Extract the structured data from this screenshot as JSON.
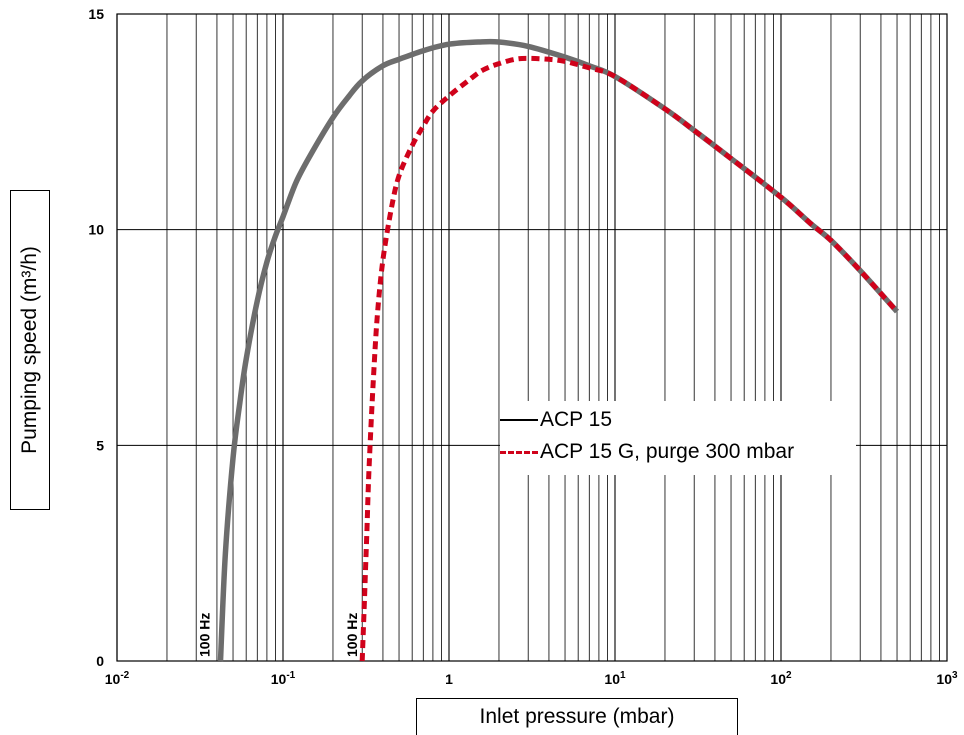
{
  "chart_data": {
    "type": "line",
    "xscale": "log",
    "xlim": [
      0.01,
      1000
    ],
    "ylim": [
      0,
      15
    ],
    "xlabel": "Inlet pressure (mbar)",
    "ylabel": "Pumping speed (m³/h)",
    "y_ticks": [
      {
        "value": 0,
        "label": "0"
      },
      {
        "value": 5,
        "label": "5"
      },
      {
        "value": 10,
        "label": "10"
      },
      {
        "value": 15,
        "label": "15"
      }
    ],
    "x_ticks": [
      {
        "value": 0.01,
        "base": "10",
        "exp": "-2"
      },
      {
        "value": 0.1,
        "base": "10",
        "exp": "-1"
      },
      {
        "value": 1,
        "base": "1",
        "exp": ""
      },
      {
        "value": 10,
        "base": "10",
        "exp": "1"
      },
      {
        "value": 100,
        "base": "10",
        "exp": "2"
      },
      {
        "value": 1000,
        "base": "10",
        "exp": "3"
      }
    ],
    "grid": true,
    "series": [
      {
        "name": "ACP 15",
        "color": "#6d6d6d",
        "style": "solid",
        "x": [
          0.042,
          0.045,
          0.05,
          0.055,
          0.06,
          0.07,
          0.08,
          0.09,
          0.1,
          0.12,
          0.15,
          0.2,
          0.25,
          0.3,
          0.4,
          0.5,
          0.7,
          1,
          1.5,
          2,
          3,
          5,
          7,
          10,
          20,
          30,
          50,
          100,
          150,
          200,
          300,
          500
        ],
        "y": [
          0,
          2.5,
          4.7,
          6.0,
          7.0,
          8.35,
          9.25,
          9.85,
          10.3,
          11.1,
          11.8,
          12.6,
          13.1,
          13.45,
          13.8,
          13.95,
          14.15,
          14.3,
          14.35,
          14.35,
          14.25,
          14.0,
          13.8,
          13.55,
          12.8,
          12.3,
          11.65,
          10.75,
          10.15,
          9.75,
          9.05,
          8.1
        ]
      },
      {
        "name": "ACP 15 G, purge 300 mbar",
        "color": "#d0021b",
        "style": "dashed",
        "x": [
          0.3,
          0.31,
          0.32,
          0.33,
          0.35,
          0.37,
          0.4,
          0.45,
          0.5,
          0.6,
          0.7,
          0.8,
          1,
          1.3,
          1.6,
          2,
          2.5,
          3,
          4,
          5,
          7,
          10,
          20,
          30,
          50,
          100,
          150,
          200,
          300,
          500
        ],
        "y": [
          0,
          1.5,
          3.0,
          4.5,
          6.5,
          8.0,
          9.3,
          10.5,
          11.25,
          11.95,
          12.4,
          12.75,
          13.1,
          13.45,
          13.7,
          13.85,
          13.95,
          13.97,
          13.95,
          13.9,
          13.75,
          13.55,
          12.8,
          12.3,
          11.65,
          10.75,
          10.15,
          9.75,
          9.05,
          8.1
        ]
      }
    ],
    "annotations": [
      {
        "text": "100 Hz",
        "x": 0.036,
        "y": 0
      },
      {
        "text": "100 Hz",
        "x": 0.28,
        "y": 0
      }
    ],
    "legend_position": "center-right"
  }
}
